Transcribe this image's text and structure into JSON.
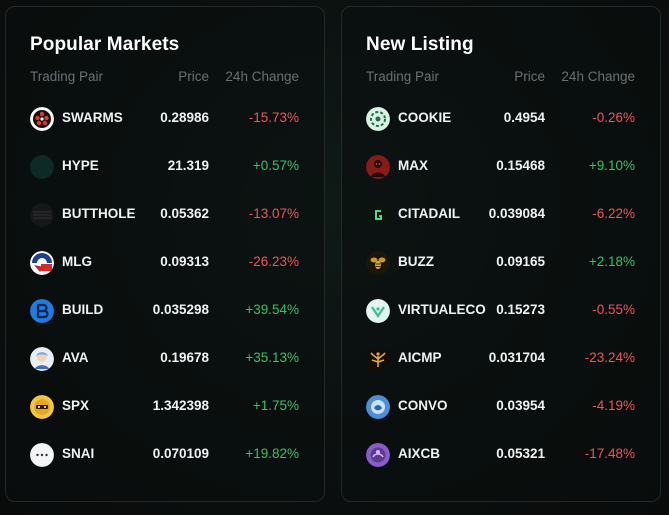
{
  "popular": {
    "title": "Popular Markets",
    "headers": {
      "pair": "Trading Pair",
      "price": "Price",
      "change": "24h Change"
    },
    "rows": [
      {
        "pair": "SWARMS",
        "price": "0.28986",
        "change": "-15.73%",
        "dir": "neg",
        "icon": "swarms-icon"
      },
      {
        "pair": "HYPE",
        "price": "21.319",
        "change": "+0.57%",
        "dir": "pos",
        "icon": "hype-icon"
      },
      {
        "pair": "BUTTHOLE",
        "price": "0.05362",
        "change": "-13.07%",
        "dir": "neg",
        "icon": "butthole-icon"
      },
      {
        "pair": "MLG",
        "price": "0.09313",
        "change": "-26.23%",
        "dir": "neg",
        "icon": "mlg-icon"
      },
      {
        "pair": "BUILD",
        "price": "0.035298",
        "change": "+39.54%",
        "dir": "pos",
        "icon": "build-icon"
      },
      {
        "pair": "AVA",
        "price": "0.19678",
        "change": "+35.13%",
        "dir": "pos",
        "icon": "ava-icon"
      },
      {
        "pair": "SPX",
        "price": "1.342398",
        "change": "+1.75%",
        "dir": "pos",
        "icon": "spx-icon"
      },
      {
        "pair": "SNAI",
        "price": "0.070109",
        "change": "+19.82%",
        "dir": "pos",
        "icon": "snai-icon"
      }
    ]
  },
  "new_listing": {
    "title": "New Listing",
    "headers": {
      "pair": "Trading Pair",
      "price": "Price",
      "change": "24h Change"
    },
    "rows": [
      {
        "pair": "COOKIE",
        "price": "0.4954",
        "change": "-0.26%",
        "dir": "neg",
        "icon": "cookie-icon"
      },
      {
        "pair": "MAX",
        "price": "0.15468",
        "change": "+9.10%",
        "dir": "pos",
        "icon": "max-icon"
      },
      {
        "pair": "CITADAIL",
        "price": "0.039084",
        "change": "-6.22%",
        "dir": "neg",
        "icon": "citadail-icon"
      },
      {
        "pair": "BUZZ",
        "price": "0.09165",
        "change": "+2.18%",
        "dir": "pos",
        "icon": "buzz-icon"
      },
      {
        "pair": "VIRTUALECO",
        "price": "0.15273",
        "change": "-0.55%",
        "dir": "neg",
        "icon": "virtualeco-icon"
      },
      {
        "pair": "AICMP",
        "price": "0.031704",
        "change": "-23.24%",
        "dir": "neg",
        "icon": "aicmp-icon"
      },
      {
        "pair": "CONVO",
        "price": "0.03954",
        "change": "-4.19%",
        "dir": "neg",
        "icon": "convo-icon"
      },
      {
        "pair": "AIXCB",
        "price": "0.05321",
        "change": "-17.48%",
        "dir": "neg",
        "icon": "aixcb-icon"
      }
    ]
  },
  "colors": {
    "negative": "#f0545a",
    "positive": "#33c36b",
    "header_text": "#6a7074",
    "primary_text": "#f1f3f3"
  }
}
